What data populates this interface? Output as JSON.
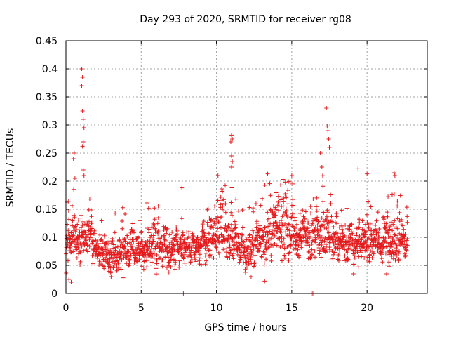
{
  "chart_data": {
    "type": "scatter",
    "title": "Day 293 of 2020, SRMTID for receiver rg08",
    "xlabel": "GPS time / hours",
    "ylabel": "SRMTID / TECUs",
    "xlim": [
      0,
      24
    ],
    "ylim": [
      0,
      0.45
    ],
    "grid": true,
    "marker": "+",
    "colors": {
      "series": "#e41a1c",
      "grid": "#a0a0a0",
      "axis": "#000000"
    },
    "xticks": [
      "0",
      "5",
      "10",
      "15",
      "20"
    ],
    "yticks": [
      "0",
      "0.05",
      "0.1",
      "0.15",
      "0.2",
      "0.25",
      "0.3",
      "0.35",
      "0.4",
      "0.45"
    ],
    "series": [
      {
        "name": "SRMTID",
        "note": "dense point cloud (~2000 points); baseline band estimated per hour, labeled peaks listed",
        "hourly_band": [
          {
            "hour": 0,
            "low": 0.03,
            "high": 0.13
          },
          {
            "hour": 1,
            "low": 0.05,
            "high": 0.16
          },
          {
            "hour": 2,
            "low": 0.04,
            "high": 0.12
          },
          {
            "hour": 3,
            "low": 0.03,
            "high": 0.1
          },
          {
            "hour": 4,
            "low": 0.04,
            "high": 0.12
          },
          {
            "hour": 5,
            "low": 0.04,
            "high": 0.12
          },
          {
            "hour": 6,
            "low": 0.04,
            "high": 0.13
          },
          {
            "hour": 7,
            "low": 0.04,
            "high": 0.13
          },
          {
            "hour": 8,
            "low": 0.05,
            "high": 0.12
          },
          {
            "hour": 9,
            "low": 0.04,
            "high": 0.12
          },
          {
            "hour": 10,
            "low": 0.05,
            "high": 0.16
          },
          {
            "hour": 11,
            "low": 0.05,
            "high": 0.15
          },
          {
            "hour": 12,
            "low": 0.03,
            "high": 0.11
          },
          {
            "hour": 13,
            "low": 0.05,
            "high": 0.15
          },
          {
            "hour": 14,
            "low": 0.06,
            "high": 0.17
          },
          {
            "hour": 15,
            "low": 0.05,
            "high": 0.16
          },
          {
            "hour": 16,
            "low": 0.05,
            "high": 0.14
          },
          {
            "hour": 17,
            "low": 0.06,
            "high": 0.18
          },
          {
            "hour": 18,
            "low": 0.05,
            "high": 0.14
          },
          {
            "hour": 19,
            "low": 0.04,
            "high": 0.12
          },
          {
            "hour": 20,
            "low": 0.05,
            "high": 0.14
          },
          {
            "hour": 21,
            "low": 0.05,
            "high": 0.13
          },
          {
            "hour": 22,
            "low": 0.05,
            "high": 0.14
          },
          {
            "hour": 22.7,
            "low": 0.06,
            "high": 0.13
          }
        ],
        "peaks": [
          {
            "x": 1.05,
            "y": 0.4
          },
          {
            "x": 1.1,
            "y": 0.385
          },
          {
            "x": 1.05,
            "y": 0.37
          },
          {
            "x": 1.1,
            "y": 0.325
          },
          {
            "x": 1.15,
            "y": 0.31
          },
          {
            "x": 1.2,
            "y": 0.295
          },
          {
            "x": 1.15,
            "y": 0.27
          },
          {
            "x": 1.1,
            "y": 0.262
          },
          {
            "x": 0.55,
            "y": 0.25
          },
          {
            "x": 0.5,
            "y": 0.24
          },
          {
            "x": 1.15,
            "y": 0.22
          },
          {
            "x": 1.2,
            "y": 0.21
          },
          {
            "x": 0.6,
            "y": 0.205
          },
          {
            "x": 7.7,
            "y": 0.188
          },
          {
            "x": 10.1,
            "y": 0.21
          },
          {
            "x": 11.0,
            "y": 0.282
          },
          {
            "x": 11.05,
            "y": 0.275
          },
          {
            "x": 10.95,
            "y": 0.27
          },
          {
            "x": 11.0,
            "y": 0.245
          },
          {
            "x": 11.05,
            "y": 0.235
          },
          {
            "x": 11.0,
            "y": 0.225
          },
          {
            "x": 13.4,
            "y": 0.213
          },
          {
            "x": 15.0,
            "y": 0.21
          },
          {
            "x": 17.3,
            "y": 0.33
          },
          {
            "x": 17.35,
            "y": 0.298
          },
          {
            "x": 17.4,
            "y": 0.29
          },
          {
            "x": 17.45,
            "y": 0.275
          },
          {
            "x": 17.5,
            "y": 0.26
          },
          {
            "x": 16.9,
            "y": 0.25
          },
          {
            "x": 17.0,
            "y": 0.225
          },
          {
            "x": 19.4,
            "y": 0.222
          },
          {
            "x": 20.0,
            "y": 0.213
          },
          {
            "x": 21.8,
            "y": 0.215
          },
          {
            "x": 21.85,
            "y": 0.21
          }
        ],
        "outliers_low": [
          {
            "x": 0.2,
            "y": 0.025
          },
          {
            "x": 0.35,
            "y": 0.02
          },
          {
            "x": 3.0,
            "y": 0.03
          },
          {
            "x": 3.8,
            "y": 0.028
          },
          {
            "x": 7.8,
            "y": 0.0
          },
          {
            "x": 12.3,
            "y": 0.03
          },
          {
            "x": 13.2,
            "y": 0.022
          },
          {
            "x": 16.3,
            "y": 0.0
          },
          {
            "x": 16.4,
            "y": 0.0
          },
          {
            "x": 19.1,
            "y": 0.035
          },
          {
            "x": 21.3,
            "y": 0.035
          }
        ]
      }
    ]
  }
}
